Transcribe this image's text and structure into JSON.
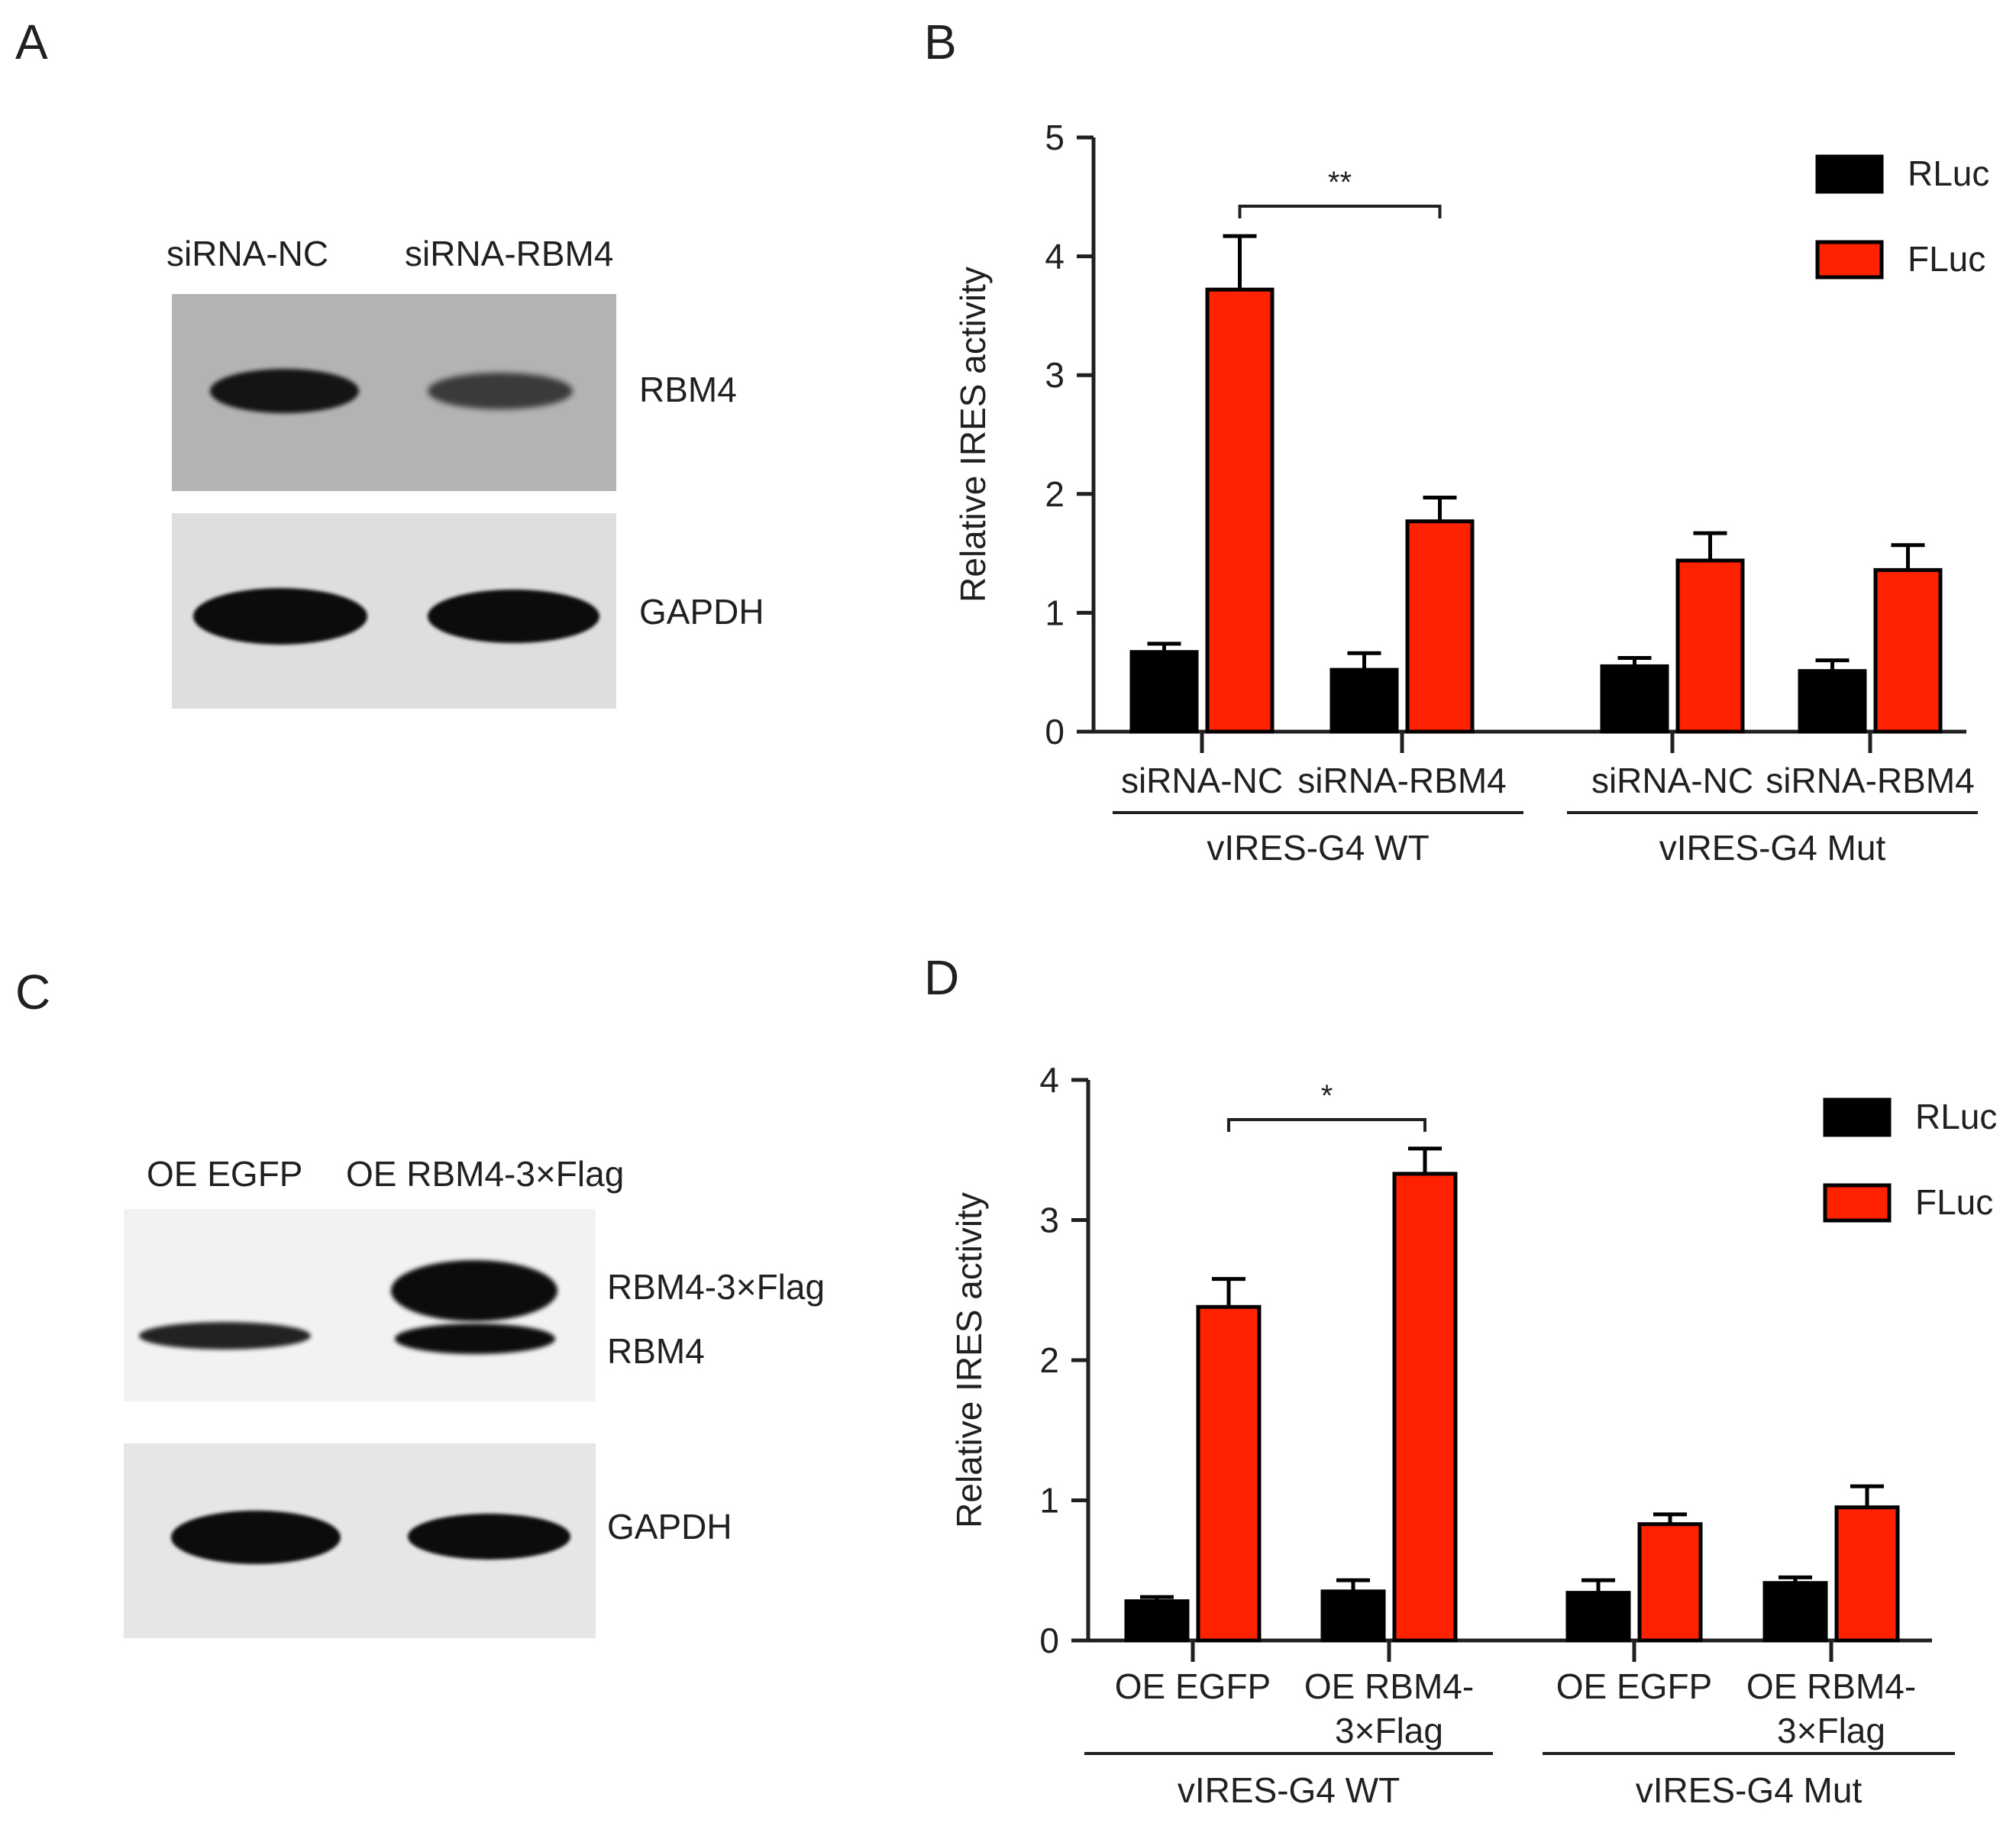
{
  "panels": {
    "A": {
      "letter": "A",
      "lanes": [
        "siRNA-NC",
        "siRNA-RBM4"
      ],
      "rows": [
        {
          "label": "RBM4",
          "band_intensity": [
            0.95,
            0.7
          ]
        },
        {
          "label": "GAPDH",
          "band_intensity": [
            1.0,
            1.0
          ]
        }
      ],
      "colors": {
        "membrane_top": "#b3b3b3",
        "membrane_bottom": "#dedede"
      }
    },
    "B": {
      "letter": "B"
    },
    "C": {
      "letter": "C",
      "lanes": [
        "OE EGFP",
        "OE RBM4-3×Flag"
      ],
      "rows": [
        {
          "labels": [
            "RBM4-3×Flag",
            "RBM4"
          ]
        },
        {
          "labels": [
            "GAPDH"
          ]
        }
      ],
      "colors": {
        "membrane_top": "#f2f2f2",
        "membrane_bottom": "#e6e6e6"
      }
    },
    "D": {
      "letter": "D"
    }
  },
  "chart_data": [
    {
      "panel": "B",
      "type": "bar",
      "ylabel": "Relative IRES activity",
      "ylim": [
        0,
        5
      ],
      "yticks": [
        "0",
        "1",
        "2",
        "3",
        "4",
        "5"
      ],
      "legend": {
        "position": "top-right",
        "entries": [
          "RLuc",
          "FLuc"
        ]
      },
      "colors": {
        "RLuc": "#000000",
        "FLuc": "#ff2200"
      },
      "categories": [
        [
          "siRNA-NC"
        ],
        [
          "siRNA-RBM4"
        ],
        [
          "siRNA-NC"
        ],
        [
          "siRNA-RBM4"
        ]
      ],
      "groups": [
        {
          "label": "vIRES-G4 WT",
          "categories": [
            0,
            1
          ]
        },
        {
          "label": "vIRES-G4 Mut",
          "categories": [
            2,
            3
          ]
        }
      ],
      "series": [
        {
          "name": "RLuc",
          "values": [
            0.67,
            0.52,
            0.55,
            0.51
          ],
          "errors": [
            0.07,
            0.14,
            0.07,
            0.09
          ]
        },
        {
          "name": "FLuc",
          "values": [
            3.72,
            1.77,
            1.44,
            1.36
          ],
          "errors": [
            0.45,
            0.2,
            0.23,
            0.21
          ]
        }
      ],
      "significance": [
        {
          "from": 0,
          "to": 1,
          "label": "**"
        }
      ]
    },
    {
      "panel": "D",
      "type": "bar",
      "ylabel": "Relative IRES activity",
      "ylim": [
        0,
        4
      ],
      "yticks": [
        "0",
        "1",
        "2",
        "3",
        "4"
      ],
      "legend": {
        "position": "top-right",
        "entries": [
          "RLuc",
          "FLuc"
        ]
      },
      "colors": {
        "RLuc": "#000000",
        "FLuc": "#ff2200"
      },
      "categories": [
        [
          "OE EGFP"
        ],
        [
          "OE RBM4-",
          "3×Flag"
        ],
        [
          "OE EGFP"
        ],
        [
          "OE RBM4-",
          "3×Flag"
        ]
      ],
      "groups": [
        {
          "label": "vIRES-G4 WT",
          "categories": [
            0,
            1
          ]
        },
        {
          "label": "vIRES-G4 Mut",
          "categories": [
            2,
            3
          ]
        }
      ],
      "series": [
        {
          "name": "RLuc",
          "values": [
            0.28,
            0.35,
            0.34,
            0.41
          ],
          "errors": [
            0.03,
            0.08,
            0.09,
            0.04
          ]
        },
        {
          "name": "FLuc",
          "values": [
            2.38,
            3.33,
            0.83,
            0.95
          ],
          "errors": [
            0.2,
            0.18,
            0.07,
            0.15
          ]
        }
      ],
      "significance": [
        {
          "from": 0,
          "to": 1,
          "label": "*"
        }
      ]
    }
  ]
}
